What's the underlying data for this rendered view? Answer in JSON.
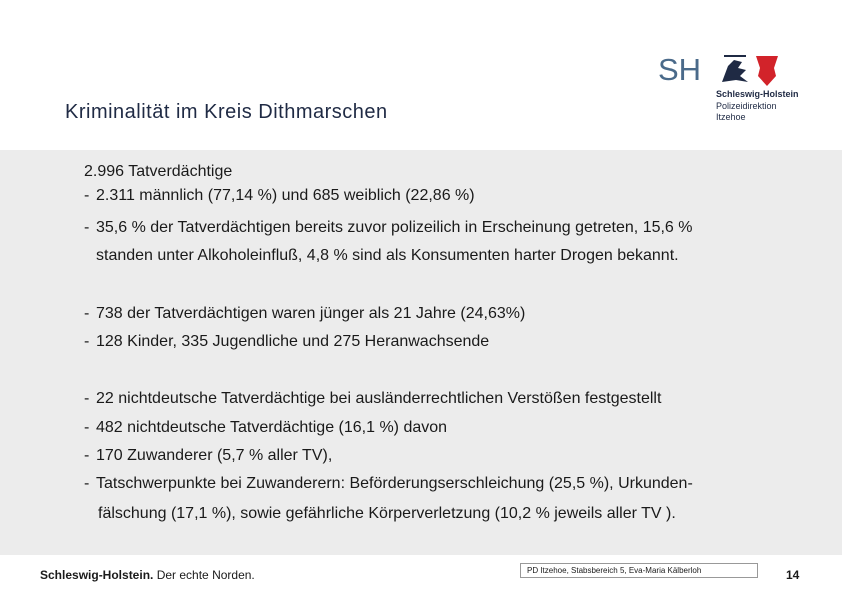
{
  "header": {
    "title": "Kriminalität im Kreis Dithmarschen",
    "logo": {
      "mark": "SH",
      "name": "Schleswig-Holstein",
      "unit": "Polizeidirektion",
      "city": "Itzehoe"
    }
  },
  "content": {
    "bullet": "-",
    "heading": "2.996 Tatverdächtige",
    "items": [
      {
        "lines": [
          "2.311 männlich (77,14 %) und 685 weiblich (22,86 %)"
        ]
      },
      {
        "lines": [
          "35,6 % der Tatverdächtigen bereits zuvor polizeilich in Erscheinung getreten, 15,6 %",
          "standen unter Alkoholeinfluß, 4,8 % sind als Konsumenten harter Drogen bekannt."
        ]
      },
      {
        "lines": [
          "738 der Tatverdächtigen waren jünger als 21 Jahre (24,63%)"
        ]
      },
      {
        "lines": [
          "128 Kinder, 335 Jugendliche und 275 Heranwachsende"
        ]
      },
      {
        "lines": [
          "22 nichtdeutsche Tatverdächtige bei ausländerrechtlichen Verstößen festgestellt"
        ]
      },
      {
        "lines": [
          "482 nichtdeutsche Tatverdächtige (16,1 %) davon"
        ]
      },
      {
        "lines": [
          "170 Zuwanderer (5,7 % aller TV),"
        ]
      },
      {
        "lines": [
          "Tatschwerpunkte bei Zuwanderern: Beförderungserschleichung (25,5 %), Urkunden-",
          "fälschung (17,1 %), sowie gefährliche Körperverletzung (10,2 % jeweils aller TV )."
        ]
      }
    ]
  },
  "footer": {
    "brand": "Schleswig-Holstein.",
    "slogan": "Der echte Norden.",
    "author": "PD Itzehoe, Stabsbereich 5, Eva-Maria Kälberloh",
    "page": "14"
  }
}
